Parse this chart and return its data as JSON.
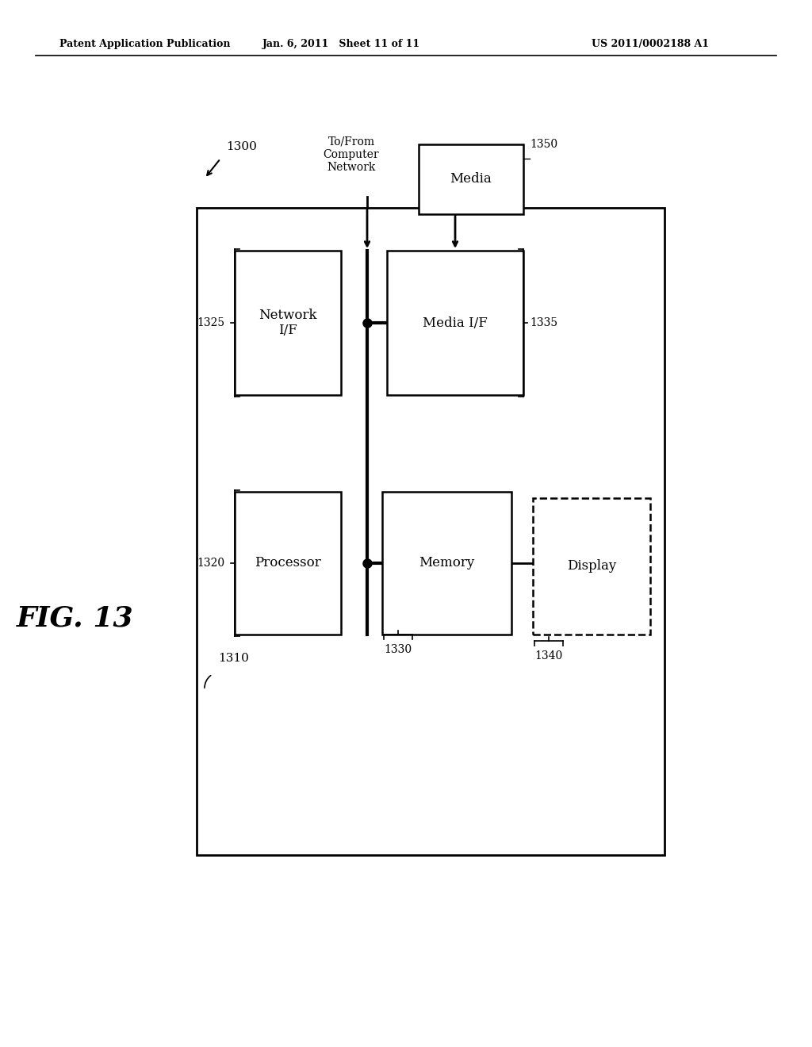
{
  "bg_color": "#ffffff",
  "header_left": "Patent Application Publication",
  "header_center": "Jan. 6, 2011   Sheet 11 of 11",
  "header_right": "US 2011/0002188 A1",
  "fig_label": "FIG. 13"
}
